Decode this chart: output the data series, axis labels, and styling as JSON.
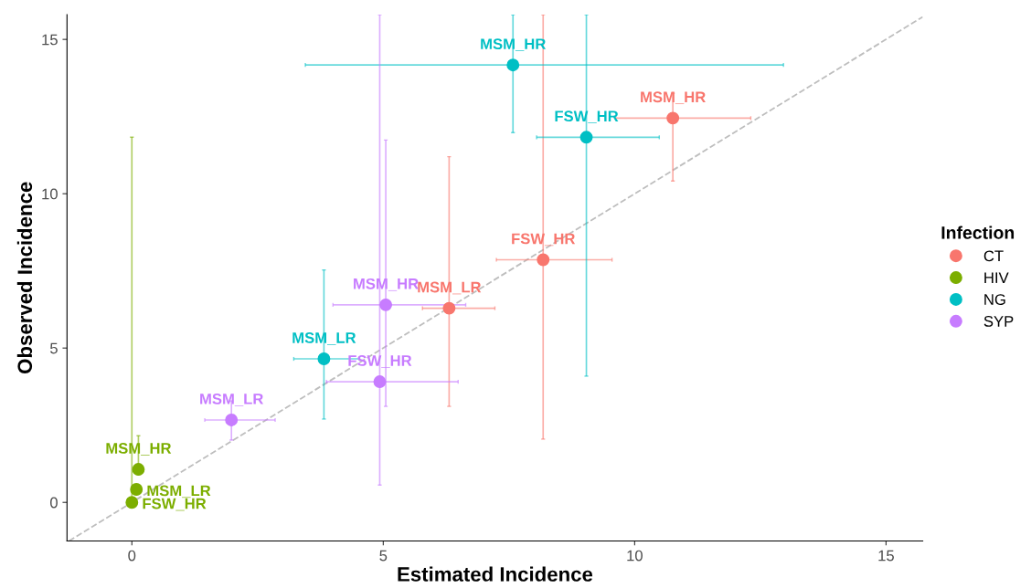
{
  "chart_data": {
    "type": "scatter",
    "xlabel": "Estimated Incidence",
    "ylabel": "Observed Incidence",
    "legend_title": "Infection",
    "legend": "right",
    "grid": false,
    "marker": "circle",
    "xlim": [
      -1.29,
      15.73
    ],
    "ylim": [
      -1.25,
      15.8
    ],
    "xticks": [
      0,
      5,
      10,
      15
    ],
    "yticks": [
      0,
      5,
      10,
      15
    ],
    "series": [
      {
        "name": "CT",
        "color": "#f8766d",
        "x": [
          10.76,
          8.18,
          6.31
        ],
        "values": [
          12.45,
          7.86,
          6.29
        ],
        "xerrors": [
          [
            9.62,
            12.31
          ],
          [
            7.25,
            9.55
          ],
          [
            5.78,
            7.22
          ]
        ],
        "errors": [
          [
            10.41,
            13.25
          ],
          [
            2.05,
            15.8
          ],
          [
            3.11,
            11.2
          ]
        ]
      },
      {
        "name": "HIV",
        "color": "#7cae00",
        "x": [
          0.13,
          0.09,
          0.0
        ],
        "values": [
          1.07,
          0.42,
          0.0
        ],
        "xerrors": [
          null,
          null,
          null
        ],
        "errors": [
          [
            0.9,
            2.16
          ],
          null,
          [
            0.0,
            11.83
          ]
        ]
      },
      {
        "name": "NG",
        "color": "#00bfc4",
        "x": [
          7.58,
          9.04,
          3.82
        ],
        "values": [
          14.17,
          11.83,
          4.65
        ],
        "xerrors": [
          [
            3.45,
            12.96
          ],
          [
            8.05,
            10.49
          ],
          [
            3.22,
            4.53
          ]
        ],
        "errors": [
          [
            11.98,
            15.8
          ],
          [
            4.09,
            15.8
          ],
          [
            2.7,
            7.53
          ]
        ]
      },
      {
        "name": "SYP",
        "color": "#c77cff",
        "x": [
          5.05,
          4.93,
          1.98
        ],
        "values": [
          6.4,
          3.91,
          2.67
        ],
        "xerrors": [
          [
            4.0,
            6.64
          ],
          [
            3.87,
            6.49
          ],
          [
            1.45,
            2.85
          ]
        ],
        "errors": [
          [
            3.11,
            11.74
          ],
          [
            0.56,
            15.8
          ],
          [
            2.02,
            3.29
          ]
        ]
      },
      {
        "type": "line",
        "color": "#bebebe",
        "line_style": "dashed",
        "marker": "none",
        "x": [
          -1.25,
          15.73
        ],
        "values": [
          -1.25,
          15.73
        ]
      }
    ],
    "annotations": [
      {
        "text": "MSM_HR",
        "x": 10.76,
        "y": 12.45
      },
      {
        "text": "FSW_HR",
        "x": 8.18,
        "y": 7.86
      },
      {
        "text": "MSM_LR",
        "x": 6.31,
        "y": 6.29
      },
      {
        "text": "MSM_HR",
        "x": 0.13,
        "y": 1.07
      },
      {
        "text": "MSM_LR",
        "x": 0.09,
        "y": 0.42
      },
      {
        "text": "FSW_HR",
        "x": 0.0,
        "y": 0.0
      },
      {
        "text": "MSM_HR",
        "x": 7.58,
        "y": 14.17
      },
      {
        "text": "FSW_HR",
        "x": 9.04,
        "y": 11.83
      },
      {
        "text": "MSM_LR",
        "x": 3.82,
        "y": 4.65
      },
      {
        "text": "MSM_HR",
        "x": 5.05,
        "y": 6.4
      },
      {
        "text": "FSW_HR",
        "x": 4.93,
        "y": 3.91
      },
      {
        "text": "MSM_LR",
        "x": 1.98,
        "y": 2.67
      }
    ]
  }
}
